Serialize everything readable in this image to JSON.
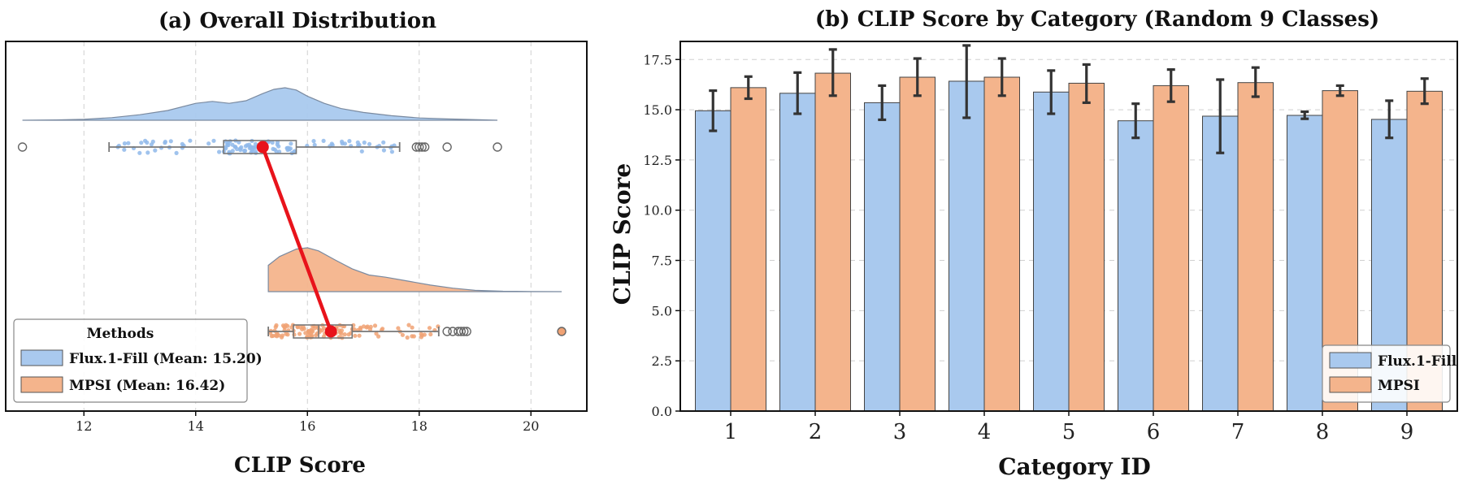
{
  "colors": {
    "flux": "#a9c9ee",
    "flux_dark": "#8fb8ea",
    "mpsi": "#f4b48c",
    "mpsi_dark": "#f0a274",
    "connector": "#e8131b",
    "errorbar": "#333333",
    "grid": "#d0d0d0"
  },
  "chart_data": [
    {
      "type": "violin",
      "title": "(a) Overall Distribution",
      "xlabel": "CLIP Score",
      "ylabel": "",
      "xlim": [
        10.6,
        21.0
      ],
      "xticks": [
        12,
        14,
        16,
        18,
        20
      ],
      "grid": "vertical dashed",
      "legend": {
        "title": "Methods",
        "placement": "lower-left",
        "entries": [
          "Flux.1-Fill (Mean:  15.20)",
          "MPSI (Mean:  16.42)"
        ]
      },
      "series": [
        {
          "name": "Flux.1-Fill",
          "mean": 15.2,
          "box": {
            "whisker_low": 12.45,
            "q1": 14.5,
            "median": 15.25,
            "q3": 15.8,
            "whisker_high": 17.65
          },
          "outliers": [
            10.9,
            17.95,
            18.0,
            18.05,
            18.1,
            18.5,
            19.4
          ],
          "density": {
            "x": [
              10.9,
              11.5,
              12.0,
              12.5,
              13.0,
              13.5,
              14.0,
              14.3,
              14.6,
              14.9,
              15.2,
              15.4,
              15.6,
              15.8,
              16.0,
              16.3,
              16.6,
              17.0,
              17.5,
              18.0,
              18.5,
              19.0,
              19.4
            ],
            "y": [
              0.0,
              0.01,
              0.03,
              0.08,
              0.17,
              0.3,
              0.52,
              0.58,
              0.52,
              0.6,
              0.82,
              0.95,
              1.0,
              0.93,
              0.74,
              0.52,
              0.36,
              0.24,
              0.14,
              0.07,
              0.04,
              0.02,
              0.0
            ]
          }
        },
        {
          "name": "MPSI",
          "mean": 16.42,
          "box": {
            "whisker_low": 15.3,
            "q1": 15.75,
            "median": 16.2,
            "q3": 16.8,
            "whisker_high": 18.35
          },
          "outliers": [
            18.5,
            18.6,
            18.7,
            18.75,
            18.8,
            18.85,
            20.55
          ],
          "density": {
            "x": [
              15.3,
              15.5,
              15.8,
              16.0,
              16.2,
              16.5,
              16.8,
              17.1,
              17.4,
              17.8,
              18.2,
              18.6,
              19.0,
              19.5,
              20.0,
              20.55
            ],
            "y": [
              0.6,
              0.8,
              0.97,
              1.0,
              0.93,
              0.72,
              0.52,
              0.38,
              0.33,
              0.24,
              0.15,
              0.08,
              0.03,
              0.01,
              0.003,
              0.0
            ]
          }
        }
      ]
    },
    {
      "type": "bar",
      "title": "(b) CLIP Score by Category (Random 9 Classes)",
      "xlabel": "Category ID",
      "ylabel": "CLIP Score",
      "categories": [
        "1",
        "2",
        "3",
        "4",
        "5",
        "6",
        "7",
        "8",
        "9"
      ],
      "ylim": [
        0,
        18.4
      ],
      "yticks": [
        "0.0",
        "2.5",
        "5.0",
        "7.5",
        "10.0",
        "12.5",
        "15.0",
        "17.5"
      ],
      "grid": "horizontal dashed",
      "legend": {
        "placement": "lower-right",
        "entries": [
          "Flux.1-Fill",
          "MPSI"
        ]
      },
      "series": [
        {
          "name": "Flux.1-Fill",
          "values": [
            14.95,
            15.82,
            15.35,
            16.42,
            15.88,
            14.45,
            14.68,
            14.72,
            14.52
          ],
          "err_low": [
            13.95,
            14.8,
            14.5,
            14.6,
            14.8,
            13.6,
            12.85,
            14.55,
            13.6
          ],
          "err_high": [
            15.95,
            16.85,
            16.2,
            18.2,
            16.95,
            15.3,
            16.5,
            14.9,
            15.45
          ]
        },
        {
          "name": "MPSI",
          "values": [
            16.1,
            16.82,
            16.62,
            16.62,
            16.32,
            16.2,
            16.35,
            15.95,
            15.92
          ],
          "err_low": [
            15.55,
            15.7,
            15.7,
            15.7,
            15.35,
            15.4,
            15.65,
            15.7,
            15.3
          ],
          "err_high": [
            16.65,
            18.0,
            17.55,
            17.55,
            17.25,
            17.0,
            17.1,
            16.2,
            16.55
          ]
        }
      ]
    }
  ]
}
